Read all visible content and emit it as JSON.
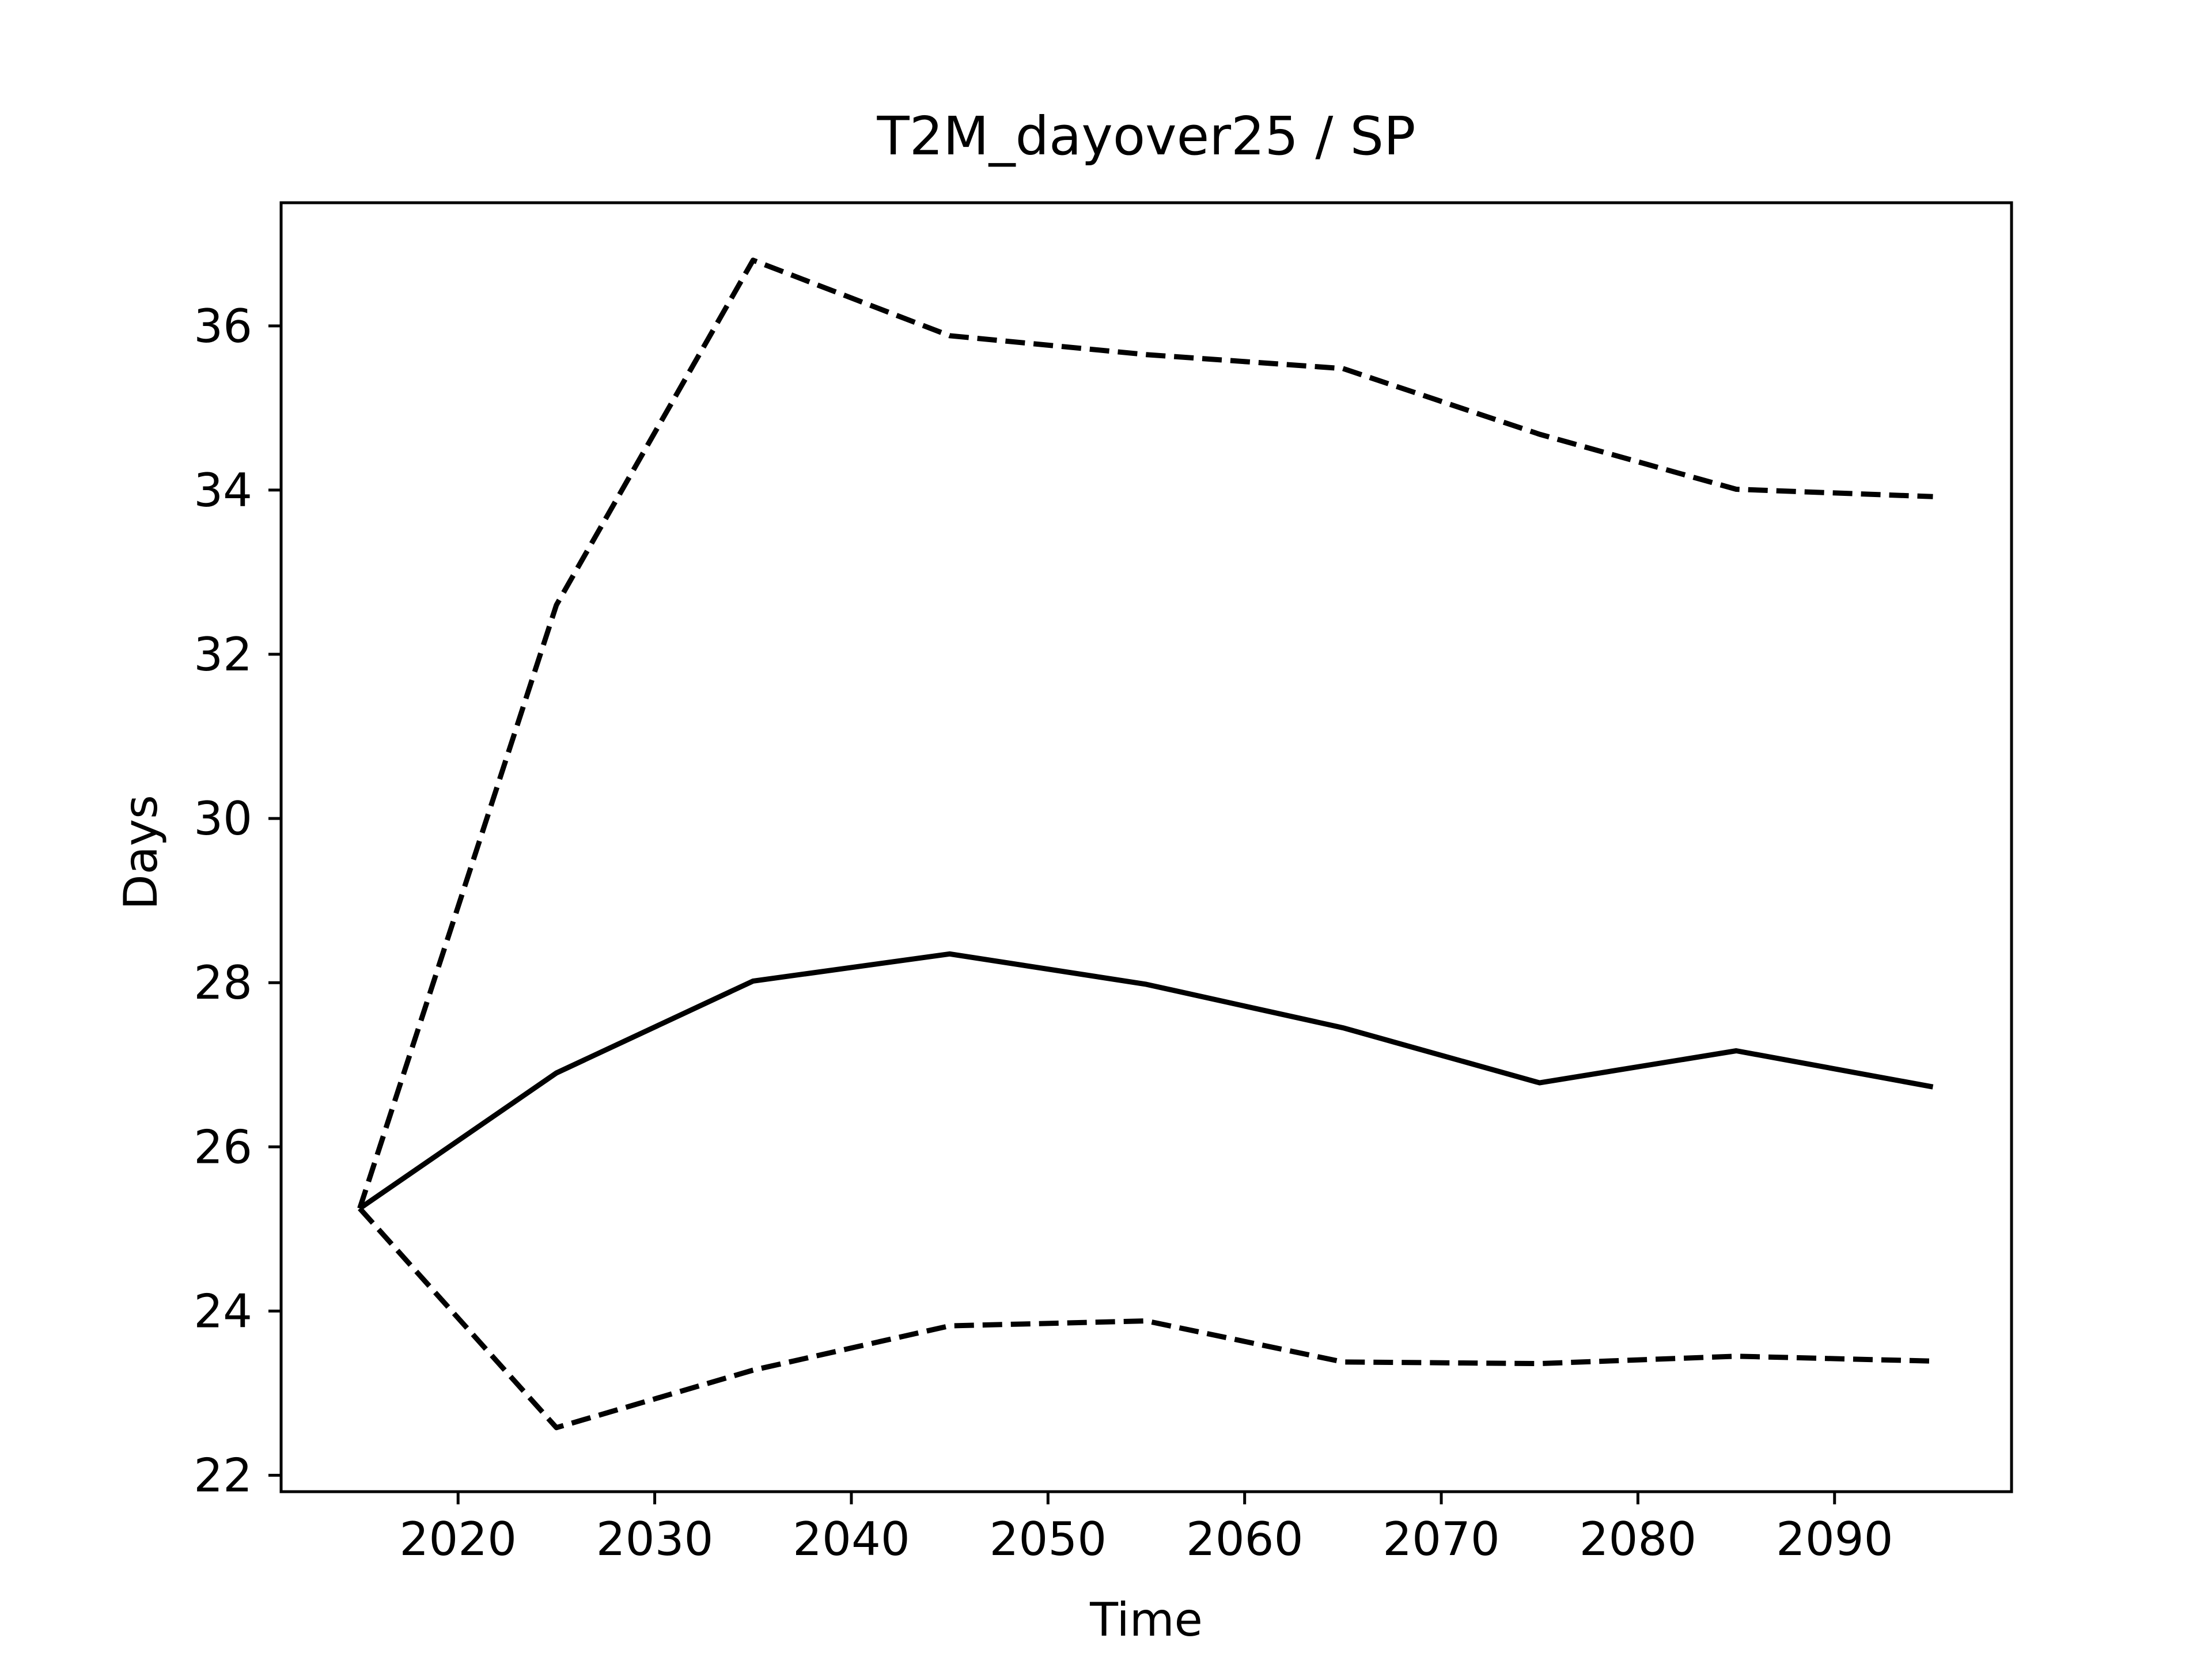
{
  "chart_data": {
    "type": "line",
    "title": "T2M_dayover25 / SP",
    "xlabel": "Time",
    "ylabel": "Days",
    "xlim": [
      2011,
      2099
    ],
    "ylim": [
      21.8,
      37.5
    ],
    "xticks": [
      2020,
      2030,
      2040,
      2050,
      2060,
      2070,
      2080,
      2090
    ],
    "yticks": [
      22,
      24,
      26,
      28,
      30,
      32,
      34,
      36
    ],
    "grid": false,
    "x": [
      2015,
      2025,
      2035,
      2045,
      2055,
      2065,
      2075,
      2085,
      2095
    ],
    "series": [
      {
        "style": "dashed",
        "color": "#000000",
        "values": [
          25.25,
          32.6,
          36.8,
          35.88,
          35.65,
          35.48,
          34.68,
          34.01,
          33.92
        ]
      },
      {
        "style": "solid",
        "color": "#000000",
        "values": [
          25.25,
          26.9,
          28.02,
          28.35,
          27.98,
          27.45,
          26.78,
          27.17,
          26.73
        ]
      },
      {
        "style": "dashed",
        "color": "#000000",
        "values": [
          25.25,
          22.58,
          23.28,
          23.82,
          23.88,
          23.38,
          23.36,
          23.45,
          23.39
        ]
      }
    ]
  }
}
